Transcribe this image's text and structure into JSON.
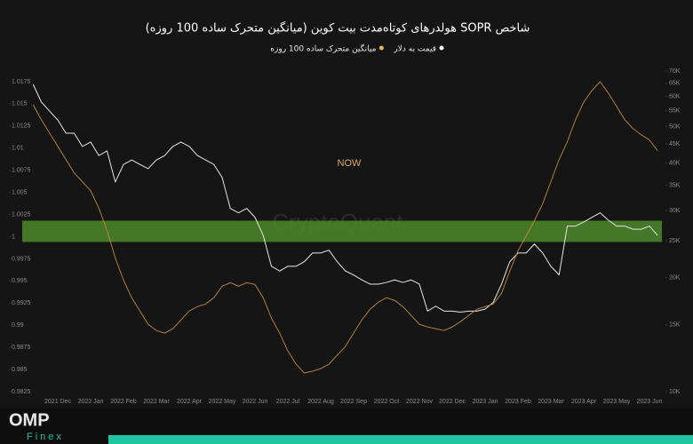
{
  "chart_data": {
    "type": "line",
    "title": "شاخص SOPR هولدرهای کوتاه‌مدت بیت کوین (میانگین متحرک ساده 100 روزه)",
    "annotation": "NOW",
    "watermark": "CryptoQuant",
    "categories": [
      null,
      null,
      null,
      "2021 Dec",
      null,
      null,
      null,
      "2022 Jan",
      null,
      null,
      null,
      "2022 Feb",
      null,
      null,
      null,
      "2022 Mar",
      null,
      null,
      null,
      "2022 Apr",
      null,
      null,
      null,
      "2022 May",
      null,
      null,
      null,
      "2022 Jun",
      null,
      null,
      null,
      "2022 Jul",
      null,
      null,
      null,
      "2022 Aug",
      null,
      null,
      null,
      "2022 Sep",
      null,
      null,
      null,
      "2022 Oct",
      null,
      null,
      null,
      "2022 Nov",
      null,
      null,
      null,
      "2022 Dec",
      null,
      null,
      null,
      "2023 Jan",
      null,
      null,
      null,
      "2023 Feb",
      null,
      null,
      null,
      "2023 Mar",
      null,
      null,
      null,
      "2023 Apr",
      null,
      null,
      null,
      "2023 May",
      null,
      null,
      null,
      "2023 Jun",
      null
    ],
    "series": [
      {
        "name": "قیمت به دلار",
        "color": "#e6e6e6",
        "axis": "y2",
        "values": [
          64600,
          58000,
          54900,
          52000,
          48000,
          48000,
          44300,
          45500,
          41900,
          43100,
          35700,
          39700,
          40800,
          39700,
          38700,
          40800,
          41900,
          44300,
          45500,
          44300,
          41900,
          40800,
          39700,
          36700,
          30400,
          29600,
          30400,
          28800,
          25800,
          21400,
          20800,
          21400,
          21400,
          22000,
          23200,
          23200,
          23600,
          22000,
          20800,
          20300,
          19700,
          19200,
          19200,
          19400,
          19700,
          19400,
          19700,
          19200,
          16300,
          16800,
          16300,
          16300,
          16200,
          16300,
          16300,
          16500,
          17200,
          19200,
          22000,
          23200,
          23200,
          24500,
          23200,
          21400,
          20300,
          27300,
          27300,
          28000,
          28800,
          29600,
          28300,
          27300,
          27300,
          26800,
          26800,
          27300,
          25800
        ]
      },
      {
        "name": "میانگین متحرک ساده 100 روزه",
        "color": "#c08a3c",
        "values": [
          1.0149,
          1.0132,
          1.0117,
          1.0102,
          1.0087,
          1.0072,
          1.0062,
          1.0052,
          1.0032,
          1.0007,
          0.9976,
          0.9951,
          0.9931,
          0.9916,
          0.9901,
          0.9894,
          0.9891,
          0.9896,
          0.9906,
          0.9916,
          0.9921,
          0.9924,
          0.9931,
          0.9944,
          0.9948,
          0.9944,
          0.9948,
          0.9946,
          0.9931,
          0.9908,
          0.9891,
          0.9871,
          0.9856,
          0.9846,
          0.9848,
          0.9851,
          0.9856,
          0.9866,
          0.9876,
          0.9891,
          0.9906,
          0.9918,
          0.9926,
          0.9931,
          0.9928,
          0.9921,
          0.9911,
          0.9901,
          0.9898,
          0.9896,
          0.9894,
          0.9898,
          0.9904,
          0.9911,
          0.9918,
          0.9921,
          0.9924,
          0.9936,
          0.9961,
          0.9984,
          1.0001,
          1.0018,
          1.0037,
          1.0062,
          1.0087,
          1.0107,
          1.0132,
          1.0152,
          1.0165,
          1.0175,
          1.0162,
          1.0147,
          1.0132,
          1.0122,
          1.0115,
          1.0109,
          1.0097
        ]
      }
    ],
    "band": {
      "from": 0.9994,
      "to": 1.0018,
      "color": "#4c8a2a"
    },
    "ylim": [
      0.9825,
      1.0187
    ],
    "yticks": [
      0.9825,
      0.985,
      0.9875,
      0.99,
      0.9925,
      0.995,
      0.9975,
      1,
      1.0025,
      1.005,
      1.0075,
      1.01,
      1.0125,
      1.015,
      1.0175
    ],
    "y2lim": [
      10000,
      70000
    ],
    "y2_log": true,
    "y2ticks": [
      {
        "value": 10000,
        "label": "10K"
      },
      {
        "value": 15000,
        "label": "15K"
      },
      {
        "value": 20000,
        "label": "20K"
      },
      {
        "value": 25000,
        "label": "25K"
      },
      {
        "value": 30000,
        "label": "30K"
      },
      {
        "value": 35000,
        "label": "35K"
      },
      {
        "value": 40000,
        "label": "40K"
      },
      {
        "value": 45000,
        "label": "45K"
      },
      {
        "value": 50000,
        "label": "50K"
      },
      {
        "value": 55000,
        "label": "55K"
      },
      {
        "value": 60000,
        "label": "60K"
      },
      {
        "value": 65000,
        "label": "65K"
      },
      {
        "value": 70000,
        "label": "70K"
      }
    ]
  },
  "brand": {
    "name": "OMP",
    "sub": "Finex"
  }
}
